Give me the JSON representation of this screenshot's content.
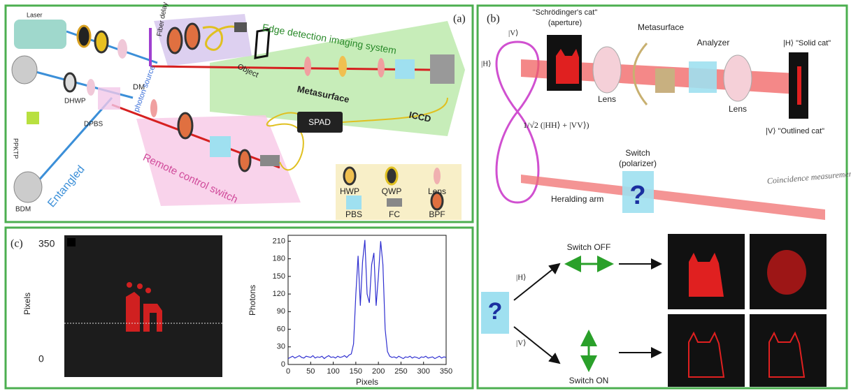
{
  "panel_a": {
    "label": "(a)",
    "laser": "Laser",
    "fiber_delay": "Fiber delay",
    "imaging_system": "Edge detection imaging system",
    "object": "Object",
    "metasurface": "Metasurface",
    "iccd": "ICCD",
    "dm": "DM",
    "photon_source": "photon source",
    "dhwp": "DHWP",
    "ppktp": "PPKTP",
    "dpbs": "DPBS",
    "bdm": "BDM",
    "entangled": "Entangled",
    "remote_switch": "Remote control switch",
    "spad": "SPAD",
    "legend": [
      "HWP",
      "QWP",
      "Lens",
      "PBS",
      "FC",
      "BPF"
    ]
  },
  "panel_b": {
    "label": "(b)",
    "cat_title": "\"Schrödinger's cat\"",
    "aperture": "(aperture)",
    "metasurface": "Metasurface",
    "analyzer": "Analyzer",
    "lens_1": "Lens",
    "lens_2": "Lens",
    "state_v": "|V⟩",
    "state_h": "|H⟩",
    "entangled_state": "1/√2 (|HH⟩ + |VV⟩)",
    "solid_cat": "|H⟩ \"Solid cat\"",
    "outlined_cat": "|V⟩ \"Outlined cat\"",
    "switch": "Switch",
    "polarizer": "(polarizer)",
    "coincidence": "Coincidence measurement",
    "heralding_arm": "Heralding arm",
    "question_1": "?",
    "switch_off": "Switch OFF",
    "branch_h": "|H⟩",
    "branch_v": "|V⟩",
    "question_2": "?",
    "switch_on": "Switch ON"
  },
  "panel_c": {
    "label": "(c)",
    "image_top": "350",
    "image_bottom": "0",
    "image_axis": "Pixels"
  },
  "chart_data": {
    "type": "line",
    "x_label": "Pixels",
    "y_label": "Photons",
    "color": "#2f2fd0",
    "x": [
      0,
      5,
      10,
      15,
      20,
      25,
      30,
      35,
      40,
      45,
      50,
      55,
      60,
      65,
      70,
      75,
      80,
      85,
      90,
      95,
      100,
      105,
      110,
      115,
      120,
      125,
      130,
      135,
      140,
      145,
      150,
      155,
      160,
      165,
      170,
      175,
      180,
      185,
      190,
      195,
      200,
      205,
      210,
      215,
      220,
      225,
      230,
      235,
      240,
      245,
      250,
      255,
      260,
      265,
      270,
      275,
      280,
      285,
      290,
      295,
      300,
      305,
      310,
      315,
      320,
      325,
      330,
      335,
      340,
      345,
      350
    ],
    "values": [
      10,
      12,
      14,
      11,
      13,
      15,
      12,
      11,
      14,
      13,
      12,
      15,
      11,
      13,
      12,
      14,
      10,
      13,
      15,
      12,
      13,
      11,
      14,
      12,
      13,
      15,
      12,
      16,
      18,
      35,
      120,
      185,
      100,
      175,
      212,
      120,
      105,
      170,
      190,
      100,
      150,
      210,
      170,
      60,
      22,
      14,
      12,
      13,
      11,
      14,
      12,
      10,
      13,
      12,
      14,
      11,
      13,
      12,
      10,
      13,
      12,
      14,
      11,
      12,
      13,
      10,
      12,
      14,
      11,
      13,
      12
    ],
    "xlim": [
      0,
      350
    ],
    "xticks": [
      0,
      50,
      100,
      150,
      200,
      250,
      300,
      350
    ],
    "ylim": [
      0,
      220
    ],
    "yticks": [
      0,
      30,
      60,
      90,
      120,
      150,
      180,
      210
    ]
  }
}
